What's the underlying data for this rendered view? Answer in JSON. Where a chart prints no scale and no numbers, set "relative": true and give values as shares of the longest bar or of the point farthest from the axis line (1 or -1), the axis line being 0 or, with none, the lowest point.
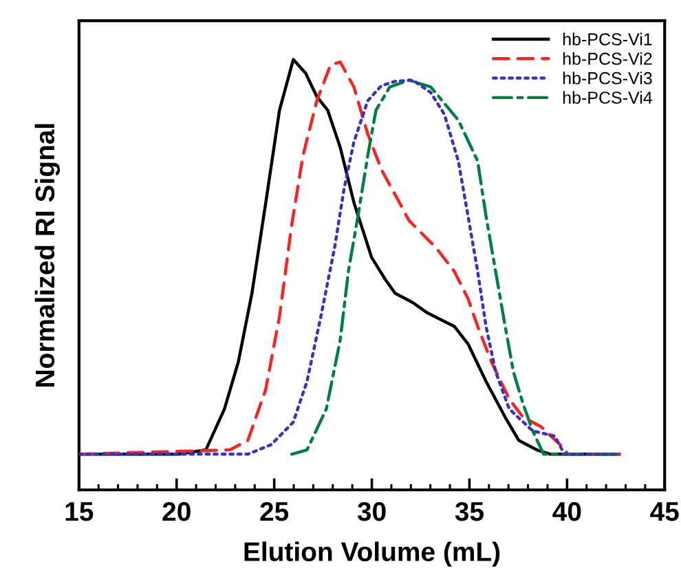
{
  "chart_data": {
    "type": "line",
    "relative": true,
    "xlabel": "Elution Volume (mL)",
    "ylabel": "Normalized RI Signal",
    "xlim": [
      15,
      45
    ],
    "xticks": [
      15,
      20,
      25,
      30,
      35,
      40,
      45
    ],
    "grid": false,
    "legend": "top right",
    "marker": "none",
    "series": [
      {
        "name": "hb-PCS-Vi1",
        "color": "#000000",
        "line_style": "solid",
        "x": [
          15,
          20.1,
          21.5,
          22.45,
          23.16,
          23.86,
          24.57,
          25.27,
          25.98,
          26.61,
          27.18,
          27.74,
          28.38,
          29.08,
          29.99,
          30.69,
          31.19,
          32.1,
          32.82,
          34.22,
          34.93,
          35.85,
          36.83,
          37.53,
          38.45,
          39.15,
          42.67
        ],
        "values": [
          0.083,
          0.083,
          0.093,
          0.188,
          0.297,
          0.457,
          0.668,
          0.882,
          1.0,
          0.968,
          0.914,
          0.882,
          0.796,
          0.668,
          0.54,
          0.489,
          0.457,
          0.435,
          0.412,
          0.38,
          0.339,
          0.252,
          0.169,
          0.115,
          0.093,
          0.083,
          0.083
        ]
      },
      {
        "name": "hb-PCS-Vi2",
        "color": "#ff2020",
        "line_style": "dashed",
        "x": [
          15,
          22.73,
          23.65,
          24.56,
          25.27,
          25.9,
          26.47,
          27.18,
          27.88,
          28.38,
          29.08,
          29.79,
          30.49,
          31.41,
          31.9,
          32.6,
          33.3,
          34.22,
          34.93,
          35.42,
          36.13,
          37.04,
          37.74,
          38.66,
          39.65,
          40.06,
          42.67
        ],
        "values": [
          0.083,
          0.093,
          0.115,
          0.233,
          0.403,
          0.617,
          0.776,
          0.904,
          0.987,
          0.994,
          0.936,
          0.827,
          0.744,
          0.668,
          0.626,
          0.594,
          0.562,
          0.508,
          0.444,
          0.38,
          0.297,
          0.211,
          0.169,
          0.147,
          0.105,
          0.083,
          0.083
        ]
      },
      {
        "name": "hb-PCS-Vi3",
        "color": "#3333cc",
        "line_style": "dotted",
        "x": [
          15,
          23.65,
          24.84,
          25.97,
          26.68,
          27.39,
          28.09,
          28.58,
          29.08,
          29.79,
          30.49,
          31.19,
          32.1,
          33.02,
          33.72,
          34.43,
          34.93,
          35.42,
          35.85,
          36.34,
          37.04,
          38.24,
          39.37,
          39.86,
          42.67
        ],
        "values": [
          0.083,
          0.083,
          0.105,
          0.157,
          0.252,
          0.403,
          0.562,
          0.7,
          0.808,
          0.904,
          0.939,
          0.949,
          0.952,
          0.923,
          0.872,
          0.764,
          0.636,
          0.508,
          0.38,
          0.275,
          0.188,
          0.137,
          0.125,
          0.083,
          0.083
        ]
      },
      {
        "name": "hb-PCS-Vi4",
        "color": "#008040",
        "line_style": "dashdot",
        "x": [
          25.9,
          26.68,
          27.67,
          28.38,
          28.8,
          29.29,
          29.79,
          30.21,
          30.92,
          31.9,
          33.02,
          34.43,
          35.42,
          35.85,
          36.34,
          36.83,
          37.25,
          37.74,
          38.24,
          38.8,
          42.67
        ],
        "values": [
          0.083,
          0.093,
          0.188,
          0.348,
          0.508,
          0.636,
          0.776,
          0.882,
          0.936,
          0.952,
          0.936,
          0.859,
          0.764,
          0.636,
          0.508,
          0.38,
          0.275,
          0.201,
          0.137,
          0.083,
          0.083
        ]
      }
    ]
  }
}
